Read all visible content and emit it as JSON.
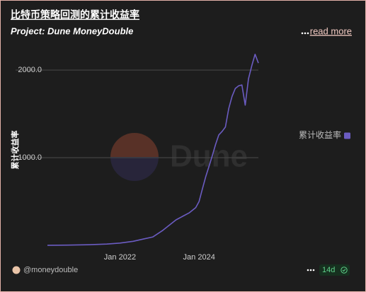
{
  "header": {
    "title": "比特币策略回测的累计收益率",
    "subtitle": "Project: Dune MoneyDouble",
    "read_more": "read more"
  },
  "watermark": "Dune",
  "chart_data": {
    "type": "line",
    "y_label": "累计收益率",
    "x": [
      "2020-03",
      "2020-09",
      "2021-03",
      "2021-09",
      "2022-01",
      "2022-05",
      "2022-08",
      "2022-11",
      "2023-02",
      "2023-04",
      "2023-06",
      "2023-08",
      "2023-10",
      "2023-12",
      "2024-01",
      "2024-02",
      "2024-03",
      "2024-04",
      "2024-05",
      "2024-06",
      "2024-07",
      "2024-08",
      "2024-09",
      "2024-10",
      "2024-11",
      "2024-12",
      "2025-01",
      "2025-02",
      "2025-03",
      "2025-04",
      "2025-05",
      "2025-06",
      "2025-07"
    ],
    "series": [
      {
        "name": "累计收益率",
        "color": "#6b5cc2",
        "values": [
          0,
          2,
          6,
          14,
          25,
          45,
          70,
          95,
          170,
          230,
          290,
          330,
          370,
          430,
          500,
          640,
          780,
          900,
          1020,
          1150,
          1260,
          1300,
          1350,
          1560,
          1700,
          1790,
          1820,
          1830,
          1600,
          1900,
          2050,
          2180,
          2080
        ]
      }
    ],
    "xlim": [
      "2020-03",
      "2025-07"
    ],
    "xticks": [
      {
        "value": "2022-01",
        "label": "Jan 2022"
      },
      {
        "value": "2024-01",
        "label": "Jan 2024"
      }
    ],
    "ylim": [
      -25,
      2235
    ],
    "yticks": [
      {
        "value": 1000,
        "label": "1000.0"
      },
      {
        "value": 2000,
        "label": "2000.0"
      }
    ],
    "grid": true,
    "legend": "right"
  },
  "footer": {
    "author": "@moneydouble",
    "badge": "14d"
  }
}
